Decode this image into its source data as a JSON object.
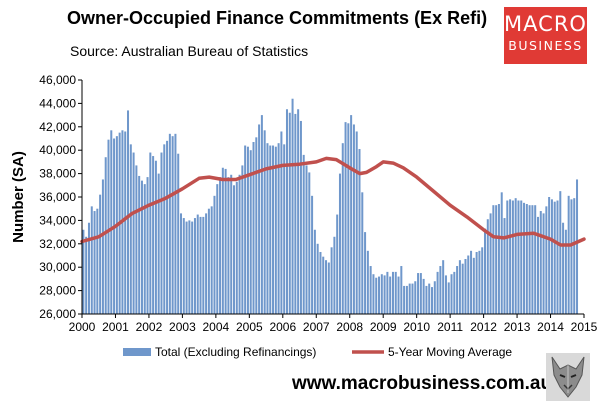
{
  "chart_data": {
    "type": "bar",
    "title": "Owner-Occupied Finance Commitments (Ex Refi)",
    "subtitle": "Source: Australian  Bureau of Statistics",
    "ylabel": "Number (SA)",
    "xlabel": "",
    "ylim": [
      26000,
      46000
    ],
    "xlim": [
      2000,
      2015
    ],
    "y_ticks": [
      "26,000",
      "28,000",
      "30,000",
      "32,000",
      "34,000",
      "36,000",
      "38,000",
      "40,000",
      "42,000",
      "44,000",
      "46,000"
    ],
    "x_ticks": [
      "2000",
      "2001",
      "2002",
      "2003",
      "2004",
      "2005",
      "2006",
      "2007",
      "2008",
      "2009",
      "2010",
      "2011",
      "2012",
      "2013",
      "2014",
      "2015"
    ],
    "legend_position": "bottom",
    "grid": false,
    "series": [
      {
        "name": "Total (Excluding Refinancings)",
        "type": "bar",
        "color": "#6f97cb",
        "start": "2000-01",
        "frequency": "monthly",
        "values": [
          33200,
          32600,
          33800,
          35200,
          34800,
          35000,
          36200,
          37500,
          39400,
          40900,
          41700,
          41000,
          41200,
          41500,
          41700,
          41600,
          43400,
          40500,
          39800,
          38700,
          37800,
          37400,
          37100,
          37700,
          39800,
          39500,
          39100,
          38000,
          39800,
          40500,
          40800,
          41400,
          41200,
          41400,
          39700,
          34600,
          34200,
          33900,
          34000,
          33900,
          34200,
          34500,
          34300,
          34300,
          34600,
          35000,
          35200,
          36100,
          37100,
          37700,
          38500,
          38400,
          37700,
          37900,
          37000,
          37300,
          37900,
          38700,
          40400,
          40300,
          40000,
          40700,
          41100,
          42200,
          43000,
          41700,
          40600,
          40400,
          40400,
          40300,
          40600,
          41600,
          40500,
          43500,
          43200,
          44400,
          43100,
          43500,
          42500,
          39600,
          38700,
          38100,
          36100,
          33200,
          32000,
          31300,
          30900,
          30600,
          30400,
          31700,
          32600,
          34500,
          38000,
          40600,
          42400,
          42300,
          43000,
          42200,
          41600,
          40100,
          36400,
          33000,
          31400,
          30100,
          29400,
          29100,
          29200,
          29400,
          29300,
          29600,
          29200,
          29600,
          29600,
          29200,
          30100,
          28400,
          28400,
          28600,
          28600,
          28800,
          29500,
          29500,
          29000,
          28400,
          28600,
          28300,
          28800,
          29600,
          30100,
          30600,
          29300,
          28700,
          29400,
          29600,
          30100,
          30600,
          30300,
          30700,
          31000,
          31400,
          30800,
          31300,
          31400,
          31700,
          33300,
          34100,
          34600,
          35300,
          35300,
          35400,
          36400,
          34200,
          35700,
          35800,
          35700,
          35900,
          35700,
          35700,
          35500,
          35400,
          35300,
          35300,
          35300,
          34300,
          34800,
          34600,
          35200,
          36000,
          35800,
          35600,
          35700,
          36500,
          33800,
          33200,
          36100,
          35800,
          35900,
          37500
        ]
      },
      {
        "name": "5-Year Moving Average",
        "type": "line",
        "color": "#c0504d",
        "points": [
          [
            2000.0,
            32200
          ],
          [
            2000.5,
            32600
          ],
          [
            2001.0,
            33500
          ],
          [
            2001.5,
            34600
          ],
          [
            2002.0,
            35300
          ],
          [
            2002.5,
            35900
          ],
          [
            2003.0,
            36700
          ],
          [
            2003.5,
            37600
          ],
          [
            2003.8,
            37700
          ],
          [
            2004.2,
            37500
          ],
          [
            2004.6,
            37500
          ],
          [
            2005.0,
            37900
          ],
          [
            2005.5,
            38400
          ],
          [
            2006.0,
            38700
          ],
          [
            2006.5,
            38800
          ],
          [
            2007.0,
            39000
          ],
          [
            2007.3,
            39300
          ],
          [
            2007.6,
            39200
          ],
          [
            2008.0,
            38500
          ],
          [
            2008.3,
            38000
          ],
          [
            2008.5,
            38100
          ],
          [
            2008.8,
            38600
          ],
          [
            2009.0,
            39000
          ],
          [
            2009.3,
            38900
          ],
          [
            2009.6,
            38500
          ],
          [
            2010.0,
            37700
          ],
          [
            2010.5,
            36500
          ],
          [
            2011.0,
            35300
          ],
          [
            2011.5,
            34300
          ],
          [
            2012.0,
            33200
          ],
          [
            2012.3,
            32600
          ],
          [
            2012.6,
            32500
          ],
          [
            2013.0,
            32800
          ],
          [
            2013.5,
            32900
          ],
          [
            2014.0,
            32400
          ],
          [
            2014.3,
            31900
          ],
          [
            2014.6,
            31900
          ],
          [
            2015.0,
            32400
          ]
        ]
      }
    ]
  },
  "logo": {
    "line1": "MACRO",
    "line2": "BUSINESS"
  },
  "website": "www.macrobusiness.com.au"
}
